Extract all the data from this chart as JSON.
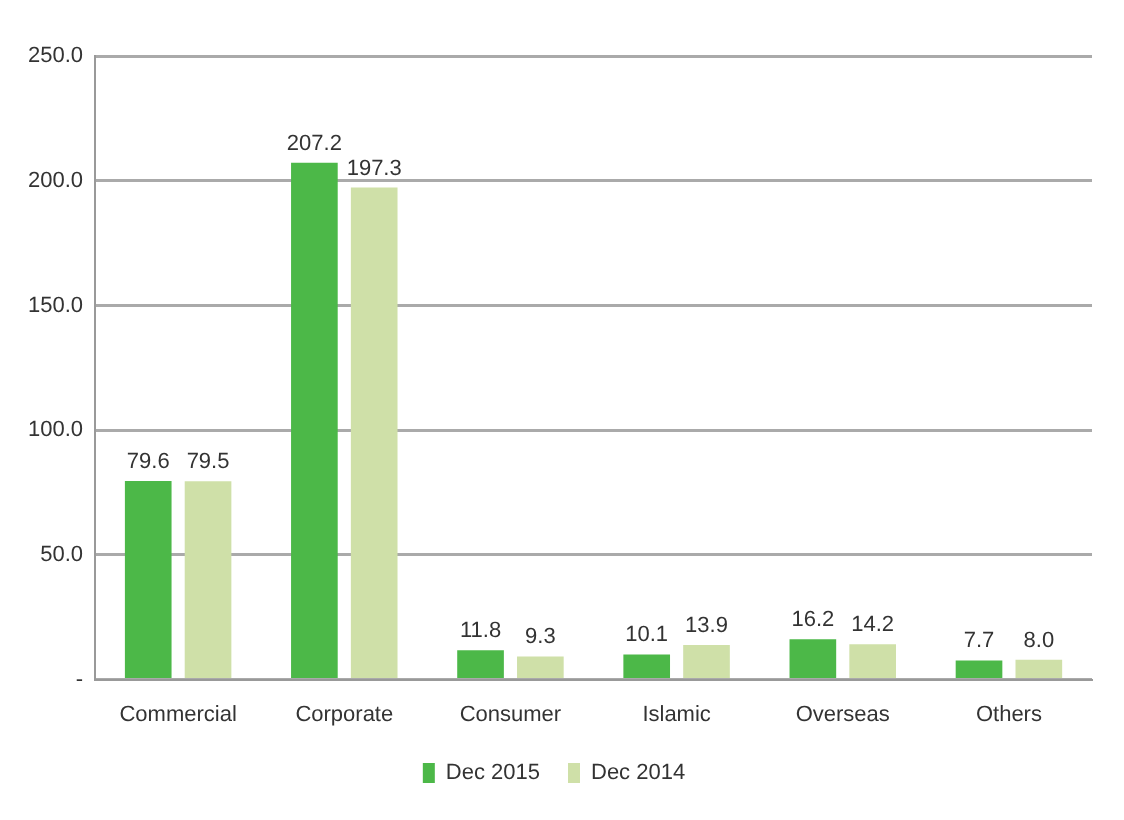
{
  "chart_data": {
    "type": "bar",
    "categories": [
      "Commercial",
      "Corporate",
      "Consumer",
      "Islamic",
      "Overseas",
      "Others"
    ],
    "series": [
      {
        "name": "Dec 2015",
        "color": "#4cb848",
        "values": [
          79.6,
          207.2,
          11.8,
          10.1,
          16.2,
          7.7
        ],
        "value_labels": [
          "79.6",
          "207.2",
          "11.8",
          "10.1",
          "16.2",
          "7.7"
        ]
      },
      {
        "name": "Dec 2014",
        "color": "#cfe0a8",
        "values": [
          79.5,
          197.3,
          9.3,
          13.9,
          14.2,
          8.0
        ],
        "value_labels": [
          "79.5",
          "197.3",
          "9.3",
          "13.9",
          "14.2",
          "8.0"
        ]
      }
    ],
    "ylim": [
      0,
      250
    ],
    "yticks": [
      {
        "value": 0,
        "label": "-"
      },
      {
        "value": 50,
        "label": "50.0"
      },
      {
        "value": 100,
        "label": "100.0"
      },
      {
        "value": 150,
        "label": "150.0"
      },
      {
        "value": 200,
        "label": "200.0"
      },
      {
        "value": 250,
        "label": "250.0"
      }
    ],
    "grid": "y",
    "legend": "bottom"
  }
}
